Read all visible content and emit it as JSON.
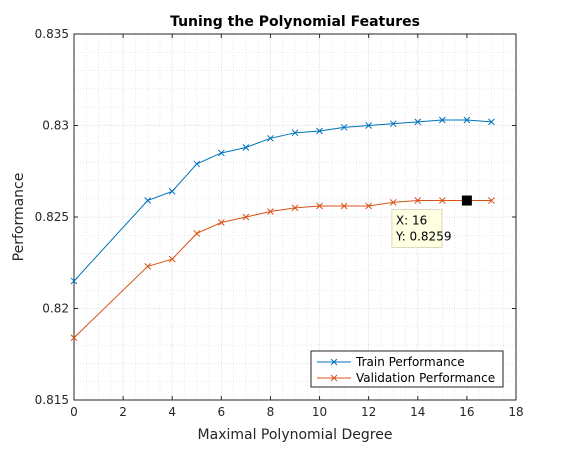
{
  "chart_data": {
    "type": "line",
    "title": "Tuning the Polynomial Features",
    "xlabel": "Maximal Polynomial Degree",
    "ylabel": "Performance",
    "xlim": [
      0,
      18
    ],
    "ylim": [
      0.815,
      0.835
    ],
    "xticks": [
      0,
      2,
      4,
      6,
      8,
      10,
      12,
      14,
      16,
      18
    ],
    "yticks": [
      0.815,
      0.82,
      0.825,
      0.83,
      0.835
    ],
    "xtick_labels": [
      "0",
      "2",
      "4",
      "6",
      "8",
      "10",
      "12",
      "14",
      "16",
      "18"
    ],
    "ytick_labels": [
      "0.815",
      "0.82",
      "0.825",
      "0.83",
      "0.835"
    ],
    "grid": true,
    "minor_grid": true,
    "legend_position": "bottom-right",
    "marker": "x",
    "series": [
      {
        "name": "Train Performance",
        "color": "#0072BD",
        "x": [
          0,
          3,
          4,
          5,
          6,
          7,
          8,
          9,
          10,
          11,
          12,
          13,
          14,
          15,
          16,
          17
        ],
        "y": [
          0.8215,
          0.8259,
          0.8264,
          0.8279,
          0.8285,
          0.8288,
          0.8293,
          0.8296,
          0.8297,
          0.8299,
          0.83,
          0.8301,
          0.8302,
          0.8303,
          0.8303,
          0.8302
        ]
      },
      {
        "name": "Validation Performance",
        "color": "#D95319",
        "x": [
          0,
          3,
          4,
          5,
          6,
          7,
          8,
          9,
          10,
          11,
          12,
          13,
          14,
          15,
          16,
          17
        ],
        "y": [
          0.8184,
          0.8223,
          0.8227,
          0.8241,
          0.8247,
          0.825,
          0.8253,
          0.8255,
          0.8256,
          0.8256,
          0.8256,
          0.8258,
          0.8259,
          0.8259,
          0.8259,
          0.8259
        ]
      }
    ],
    "datatip": {
      "series": "Validation Performance",
      "x": 16,
      "y": 0.8259,
      "line1": "X: 16",
      "line2": "Y: 0.8259"
    }
  }
}
